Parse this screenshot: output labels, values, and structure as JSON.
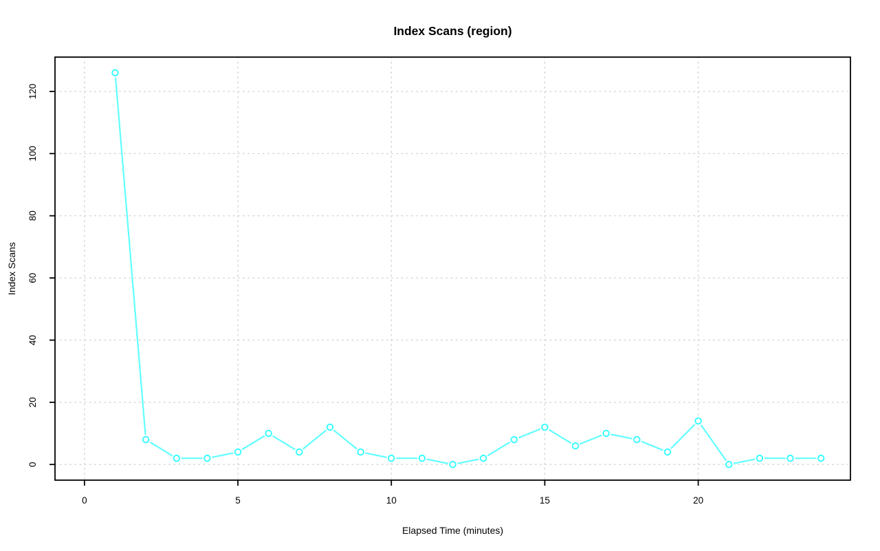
{
  "figure": {
    "title": "Index Scans (region)",
    "xlabel": "Elapsed Time (minutes)",
    "ylabel": "Index Scans"
  },
  "chart_data": {
    "type": "line",
    "title": "Index Scans (region)",
    "xlabel": "Elapsed Time (minutes)",
    "ylabel": "Index Scans",
    "x": [
      1,
      2,
      3,
      4,
      5,
      6,
      7,
      8,
      9,
      10,
      11,
      12,
      13,
      14,
      15,
      16,
      17,
      18,
      19,
      20,
      21,
      22,
      23,
      24
    ],
    "y": [
      126,
      8,
      2,
      2,
      4,
      10,
      4,
      12,
      4,
      2,
      2,
      0,
      2,
      8,
      12,
      6,
      10,
      8,
      4,
      14,
      0,
      2,
      2,
      2
    ],
    "xticks": [
      0,
      5,
      10,
      15,
      20
    ],
    "yticks": [
      0,
      20,
      40,
      60,
      80,
      100,
      120
    ],
    "xtick_labels": [
      "0",
      "5",
      "10",
      "15",
      "20"
    ],
    "ytick_labels": [
      "0",
      "20",
      "40",
      "60",
      "80",
      "100",
      "120"
    ],
    "xlim": [
      -0.96,
      24.96
    ],
    "ylim": [
      -5.04,
      131.04
    ],
    "grid": "dotted",
    "legend": "none",
    "marker": "open-circle",
    "series_color": "#00FFFF",
    "grid_color": "#D6D6D6",
    "axis_color": "#000000",
    "background": "#FFFFFF"
  }
}
